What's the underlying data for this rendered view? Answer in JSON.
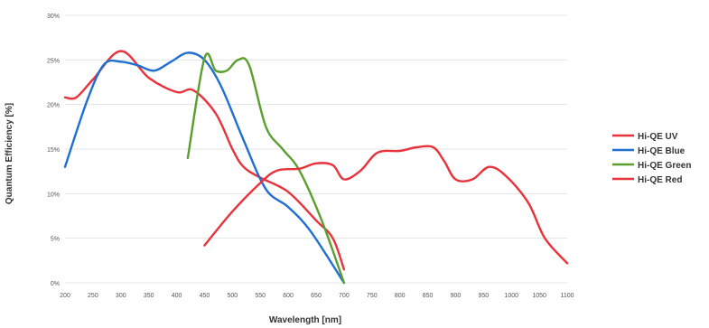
{
  "chart_data": {
    "type": "line",
    "title": "",
    "xlabel": "Wavelength [nm]",
    "ylabel": "Quantum Efficiency [%]",
    "x_ticks": [
      200,
      250,
      300,
      350,
      400,
      450,
      500,
      550,
      600,
      650,
      700,
      750,
      800,
      850,
      900,
      950,
      1000,
      1050,
      1100
    ],
    "y_ticks": [
      "0%",
      "5%",
      "10%",
      "15%",
      "20%",
      "25%",
      "30%"
    ],
    "xlim": [
      200,
      1100
    ],
    "ylim": [
      0,
      30
    ],
    "grid": "horizontal",
    "legend_position": "right",
    "series": [
      {
        "name": "Hi-QE UV",
        "color": "#e8323c",
        "points": [
          [
            200,
            20.8
          ],
          [
            220,
            20.8
          ],
          [
            250,
            22.8
          ],
          [
            300,
            26
          ],
          [
            350,
            23
          ],
          [
            400,
            21.4
          ],
          [
            430,
            21.6
          ],
          [
            470,
            19
          ],
          [
            500,
            15
          ],
          [
            520,
            13
          ],
          [
            550,
            11.8
          ],
          [
            600,
            10.2
          ],
          [
            650,
            7
          ],
          [
            680,
            5
          ],
          [
            700,
            1.5
          ]
        ]
      },
      {
        "name": "Hi-QE Blue",
        "color": "#1f6fd0",
        "points": [
          [
            200,
            13
          ],
          [
            240,
            20.5
          ],
          [
            270,
            24.5
          ],
          [
            300,
            24.8
          ],
          [
            330,
            24.4
          ],
          [
            360,
            23.8
          ],
          [
            390,
            24.8
          ],
          [
            420,
            25.8
          ],
          [
            450,
            25
          ],
          [
            480,
            22
          ],
          [
            520,
            16
          ],
          [
            560,
            10.5
          ],
          [
            600,
            8.5
          ],
          [
            640,
            5.8
          ],
          [
            700,
            0
          ]
        ]
      },
      {
        "name": "Hi-QE Green",
        "color": "#5a9e2e",
        "points": [
          [
            420,
            14
          ],
          [
            450,
            25.2
          ],
          [
            470,
            23.8
          ],
          [
            490,
            23.8
          ],
          [
            510,
            25
          ],
          [
            530,
            24.4
          ],
          [
            560,
            17.5
          ],
          [
            590,
            15
          ],
          [
            620,
            12.6
          ],
          [
            660,
            7
          ],
          [
            700,
            0
          ]
        ]
      },
      {
        "name": "Hi-QE Red",
        "color": "#e8323c",
        "points": [
          [
            450,
            4.2
          ],
          [
            500,
            8
          ],
          [
            550,
            11.2
          ],
          [
            580,
            12.6
          ],
          [
            620,
            12.8
          ],
          [
            650,
            13.4
          ],
          [
            680,
            13.2
          ],
          [
            700,
            11.6
          ],
          [
            730,
            12.6
          ],
          [
            760,
            14.6
          ],
          [
            800,
            14.8
          ],
          [
            830,
            15.2
          ],
          [
            860,
            15.2
          ],
          [
            880,
            13.6
          ],
          [
            900,
            11.6
          ],
          [
            930,
            11.6
          ],
          [
            960,
            13
          ],
          [
            990,
            12
          ],
          [
            1030,
            9
          ],
          [
            1060,
            5
          ],
          [
            1100,
            2.2
          ]
        ]
      }
    ]
  }
}
